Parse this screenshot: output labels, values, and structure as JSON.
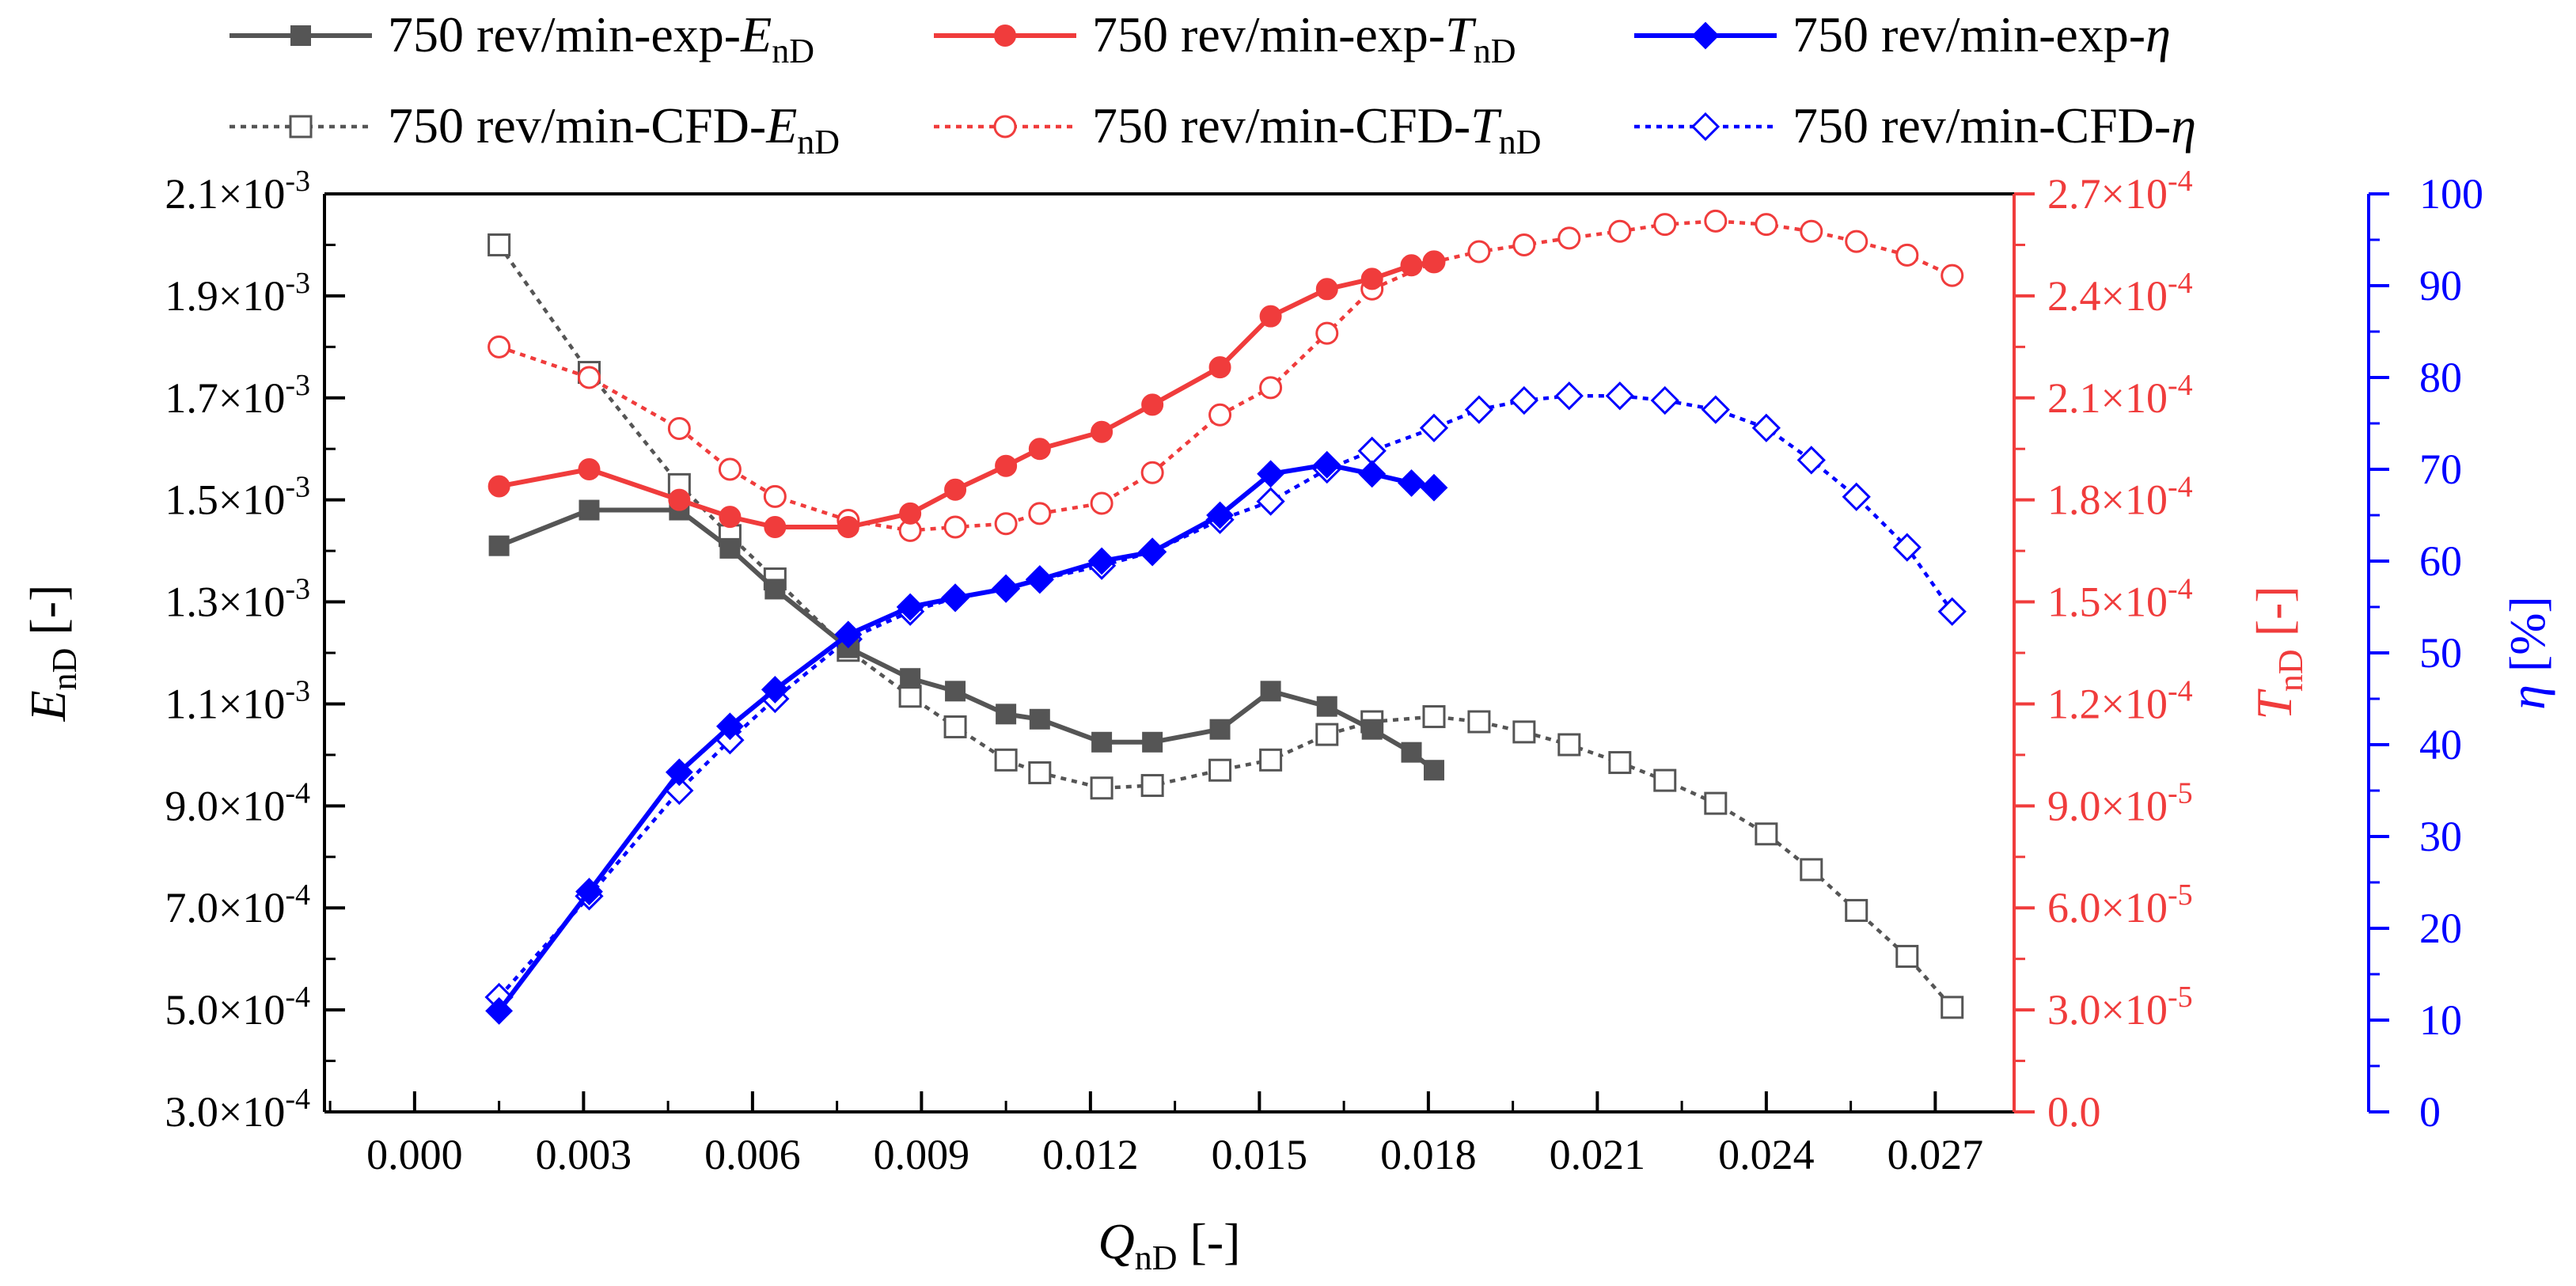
{
  "chart_data": {
    "type": "line",
    "xlabel": {
      "main": "Q",
      "sub": "nD",
      "tail": " [-]"
    },
    "x_ticks": [
      "0.000",
      "0.003",
      "0.006",
      "0.009",
      "0.012",
      "0.015",
      "0.018",
      "0.021",
      "0.024",
      "0.027"
    ],
    "xlim": [
      -0.0016,
      0.0284
    ],
    "axes": {
      "E": {
        "label": {
          "main": "E",
          "sub": "nD",
          "tail": " [-]"
        },
        "color": "#000000",
        "ylim": [
          0.0003,
          0.0021
        ],
        "tick_values": [
          0.0003,
          0.0005,
          0.0007,
          0.0009,
          0.0011,
          0.0013,
          0.0015,
          0.0017,
          0.0019,
          0.0021
        ],
        "ticks": [
          {
            "m": "3.0",
            "e": "-4"
          },
          {
            "m": "5.0",
            "e": "-4"
          },
          {
            "m": "7.0",
            "e": "-4"
          },
          {
            "m": "9.0",
            "e": "-4"
          },
          {
            "m": "1.1",
            "e": "-3"
          },
          {
            "m": "1.3",
            "e": "-3"
          },
          {
            "m": "1.5",
            "e": "-3"
          },
          {
            "m": "1.7",
            "e": "-3"
          },
          {
            "m": "1.9",
            "e": "-3"
          },
          {
            "m": "2.1",
            "e": "-3"
          }
        ]
      },
      "T": {
        "label": {
          "main": "T",
          "sub": "nD",
          "tail": " [-]"
        },
        "color": "#f03c3c",
        "ylim": [
          0,
          0.00027
        ],
        "tick_values": [
          0,
          3e-05,
          6e-05,
          9e-05,
          0.00012,
          0.00015,
          0.00018,
          0.00021,
          0.00024,
          0.00027
        ],
        "ticks": [
          {
            "m": "0.0",
            "e": ""
          },
          {
            "m": "3.0",
            "e": "-5"
          },
          {
            "m": "6.0",
            "e": "-5"
          },
          {
            "m": "9.0",
            "e": "-5"
          },
          {
            "m": "1.2",
            "e": "-4"
          },
          {
            "m": "1.5",
            "e": "-4"
          },
          {
            "m": "1.8",
            "e": "-4"
          },
          {
            "m": "2.1",
            "e": "-4"
          },
          {
            "m": "2.4",
            "e": "-4"
          },
          {
            "m": "2.7",
            "e": "-4"
          }
        ]
      },
      "eta": {
        "label": {
          "main": "η",
          "sub": "",
          "tail": " [%]"
        },
        "color": "#0000ff",
        "ylim": [
          0,
          100
        ],
        "tick_values": [
          0,
          10,
          20,
          30,
          40,
          50,
          60,
          70,
          80,
          90,
          100
        ],
        "ticks": [
          "0",
          "10",
          "20",
          "30",
          "40",
          "50",
          "60",
          "70",
          "80",
          "90",
          "100"
        ]
      }
    },
    "legend_position": "top",
    "series": [
      {
        "key": "exp-E",
        "axis": "E",
        "style": "solid",
        "marker": "square",
        "filled": true,
        "color": "#555555",
        "legend": {
          "prefix": "750 rev/min-exp-",
          "main": "E",
          "sub": "nD"
        },
        "x": [
          0.0015,
          0.0031,
          0.0047,
          0.0056,
          0.0064,
          0.0077,
          0.0088,
          0.0096,
          0.0105,
          0.0111,
          0.0122,
          0.0131,
          0.0143,
          0.0152,
          0.0162,
          0.017,
          0.0177,
          0.0181
        ],
        "y": [
          0.00141,
          0.00148,
          0.00148,
          0.001405,
          0.001325,
          0.00121,
          0.00115,
          0.001125,
          0.00108,
          0.00107,
          0.001025,
          0.001025,
          0.00105,
          0.001125,
          0.001095,
          0.00105,
          0.001005,
          0.00097
        ]
      },
      {
        "key": "exp-T",
        "axis": "T",
        "style": "solid",
        "marker": "circle",
        "filled": true,
        "color": "#f03c3c",
        "legend": {
          "prefix": "750 rev/min-exp-",
          "main": "T",
          "sub": "nD"
        },
        "x": [
          0.0015,
          0.0031,
          0.0047,
          0.0056,
          0.0064,
          0.0077,
          0.0088,
          0.0096,
          0.0105,
          0.0111,
          0.0122,
          0.0131,
          0.0143,
          0.0152,
          0.0162,
          0.017,
          0.0177,
          0.0181
        ],
        "y": [
          0.000184,
          0.000189,
          0.00018,
          0.000175,
          0.000172,
          0.000172,
          0.000176,
          0.000183,
          0.00019,
          0.000195,
          0.0002,
          0.000208,
          0.000219,
          0.000234,
          0.000242,
          0.000245,
          0.000249,
          0.00025
        ]
      },
      {
        "key": "exp-eta",
        "axis": "eta",
        "style": "solid",
        "marker": "diamond",
        "filled": true,
        "color": "#0000ff",
        "legend": {
          "prefix": "750 rev/min-exp-",
          "main": "η",
          "sub": ""
        },
        "x": [
          0.0015,
          0.0031,
          0.0047,
          0.0056,
          0.0064,
          0.0077,
          0.0088,
          0.0096,
          0.0105,
          0.0111,
          0.0122,
          0.0131,
          0.0143,
          0.0152,
          0.0162,
          0.017,
          0.0177,
          0.0181
        ],
        "y": [
          11,
          24,
          37,
          42,
          46,
          52,
          55,
          56,
          57,
          58,
          60,
          61,
          65,
          69.5,
          70.5,
          69.5,
          68.5,
          68
        ]
      },
      {
        "key": "cfd-E",
        "axis": "E",
        "style": "dotted",
        "marker": "square",
        "filled": false,
        "color": "#555555",
        "legend": {
          "prefix": "750 rev/min-CFD-",
          "main": "E",
          "sub": "nD"
        },
        "x": [
          0.0015,
          0.0031,
          0.0047,
          0.0056,
          0.0064,
          0.0077,
          0.0088,
          0.0096,
          0.0105,
          0.0111,
          0.0122,
          0.0131,
          0.0143,
          0.0152,
          0.0162,
          0.017,
          0.0181,
          0.0189,
          0.0197,
          0.0205,
          0.0214,
          0.0222,
          0.0231,
          0.024,
          0.0248,
          0.0256,
          0.0265,
          0.0273
        ],
        "y": [
          0.002,
          0.00175,
          0.00153,
          0.00143,
          0.001345,
          0.001205,
          0.001115,
          0.001055,
          0.00099,
          0.000965,
          0.000935,
          0.00094,
          0.00097,
          0.00099,
          0.00104,
          0.001065,
          0.001075,
          0.001065,
          0.001045,
          0.00102,
          0.000985,
          0.00095,
          0.000905,
          0.000845,
          0.000775,
          0.000695,
          0.000605,
          0.000505
        ]
      },
      {
        "key": "cfd-T",
        "axis": "T",
        "style": "dotted",
        "marker": "circle",
        "filled": false,
        "color": "#f03c3c",
        "legend": {
          "prefix": "750 rev/min-CFD-",
          "main": "T",
          "sub": "nD"
        },
        "x": [
          0.0015,
          0.0031,
          0.0047,
          0.0056,
          0.0064,
          0.0077,
          0.0088,
          0.0096,
          0.0105,
          0.0111,
          0.0122,
          0.0131,
          0.0143,
          0.0152,
          0.0162,
          0.017,
          0.0181,
          0.0189,
          0.0197,
          0.0205,
          0.0214,
          0.0222,
          0.0231,
          0.024,
          0.0248,
          0.0256,
          0.0265,
          0.0273
        ],
        "y": [
          0.000225,
          0.000216,
          0.000201,
          0.000189,
          0.000181,
          0.000174,
          0.000171,
          0.000172,
          0.000173,
          0.000176,
          0.000179,
          0.000188,
          0.000205,
          0.000213,
          0.000229,
          0.000242,
          0.00025,
          0.000253,
          0.000255,
          0.000257,
          0.000259,
          0.000261,
          0.000262,
          0.000261,
          0.000259,
          0.000256,
          0.000252,
          0.000246
        ]
      },
      {
        "key": "cfd-eta",
        "axis": "eta",
        "style": "dotted",
        "marker": "diamond",
        "filled": false,
        "color": "#0000ff",
        "legend": {
          "prefix": "750 rev/min-CFD-",
          "main": "η",
          "sub": ""
        },
        "x": [
          0.0015,
          0.0031,
          0.0047,
          0.0056,
          0.0064,
          0.0077,
          0.0088,
          0.0096,
          0.0105,
          0.0111,
          0.0122,
          0.0131,
          0.0143,
          0.0152,
          0.0162,
          0.017,
          0.0181,
          0.0189,
          0.0197,
          0.0205,
          0.0214,
          0.0222,
          0.0231,
          0.024,
          0.0248,
          0.0256,
          0.0265,
          0.0273
        ],
        "y": [
          12.5,
          23.5,
          35,
          40.5,
          45,
          51.5,
          54.5,
          56,
          57,
          58,
          59.5,
          61,
          64.5,
          66.5,
          70,
          72,
          74.5,
          76.5,
          77.5,
          78,
          78,
          77.5,
          76.5,
          74.5,
          71,
          67,
          61.5,
          54.5
        ]
      }
    ]
  }
}
